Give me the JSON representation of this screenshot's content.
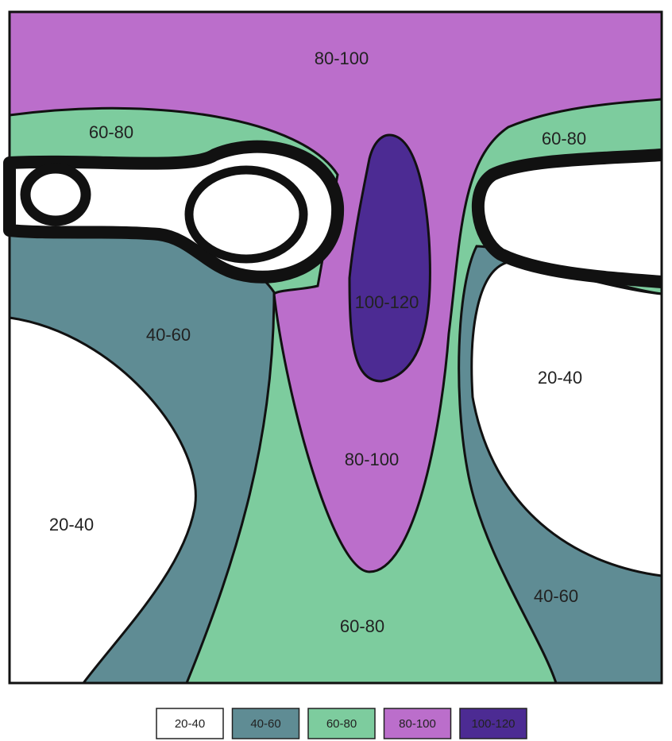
{
  "regions": [
    "80-100",
    "60-80",
    "60-80",
    "100-120",
    "40-60",
    "20-40",
    "80-100",
    "20-40",
    "40-60",
    "60-80"
  ],
  "legend": [
    {
      "label": "20-40",
      "color": "#ffffff"
    },
    {
      "label": "40-60",
      "color": "#5f8c94"
    },
    {
      "label": "60-80",
      "color": "#7dcc9e"
    },
    {
      "label": "80-100",
      "color": "#bb6ecb"
    },
    {
      "label": "100-120",
      "color": "#4c2b93"
    }
  ]
}
